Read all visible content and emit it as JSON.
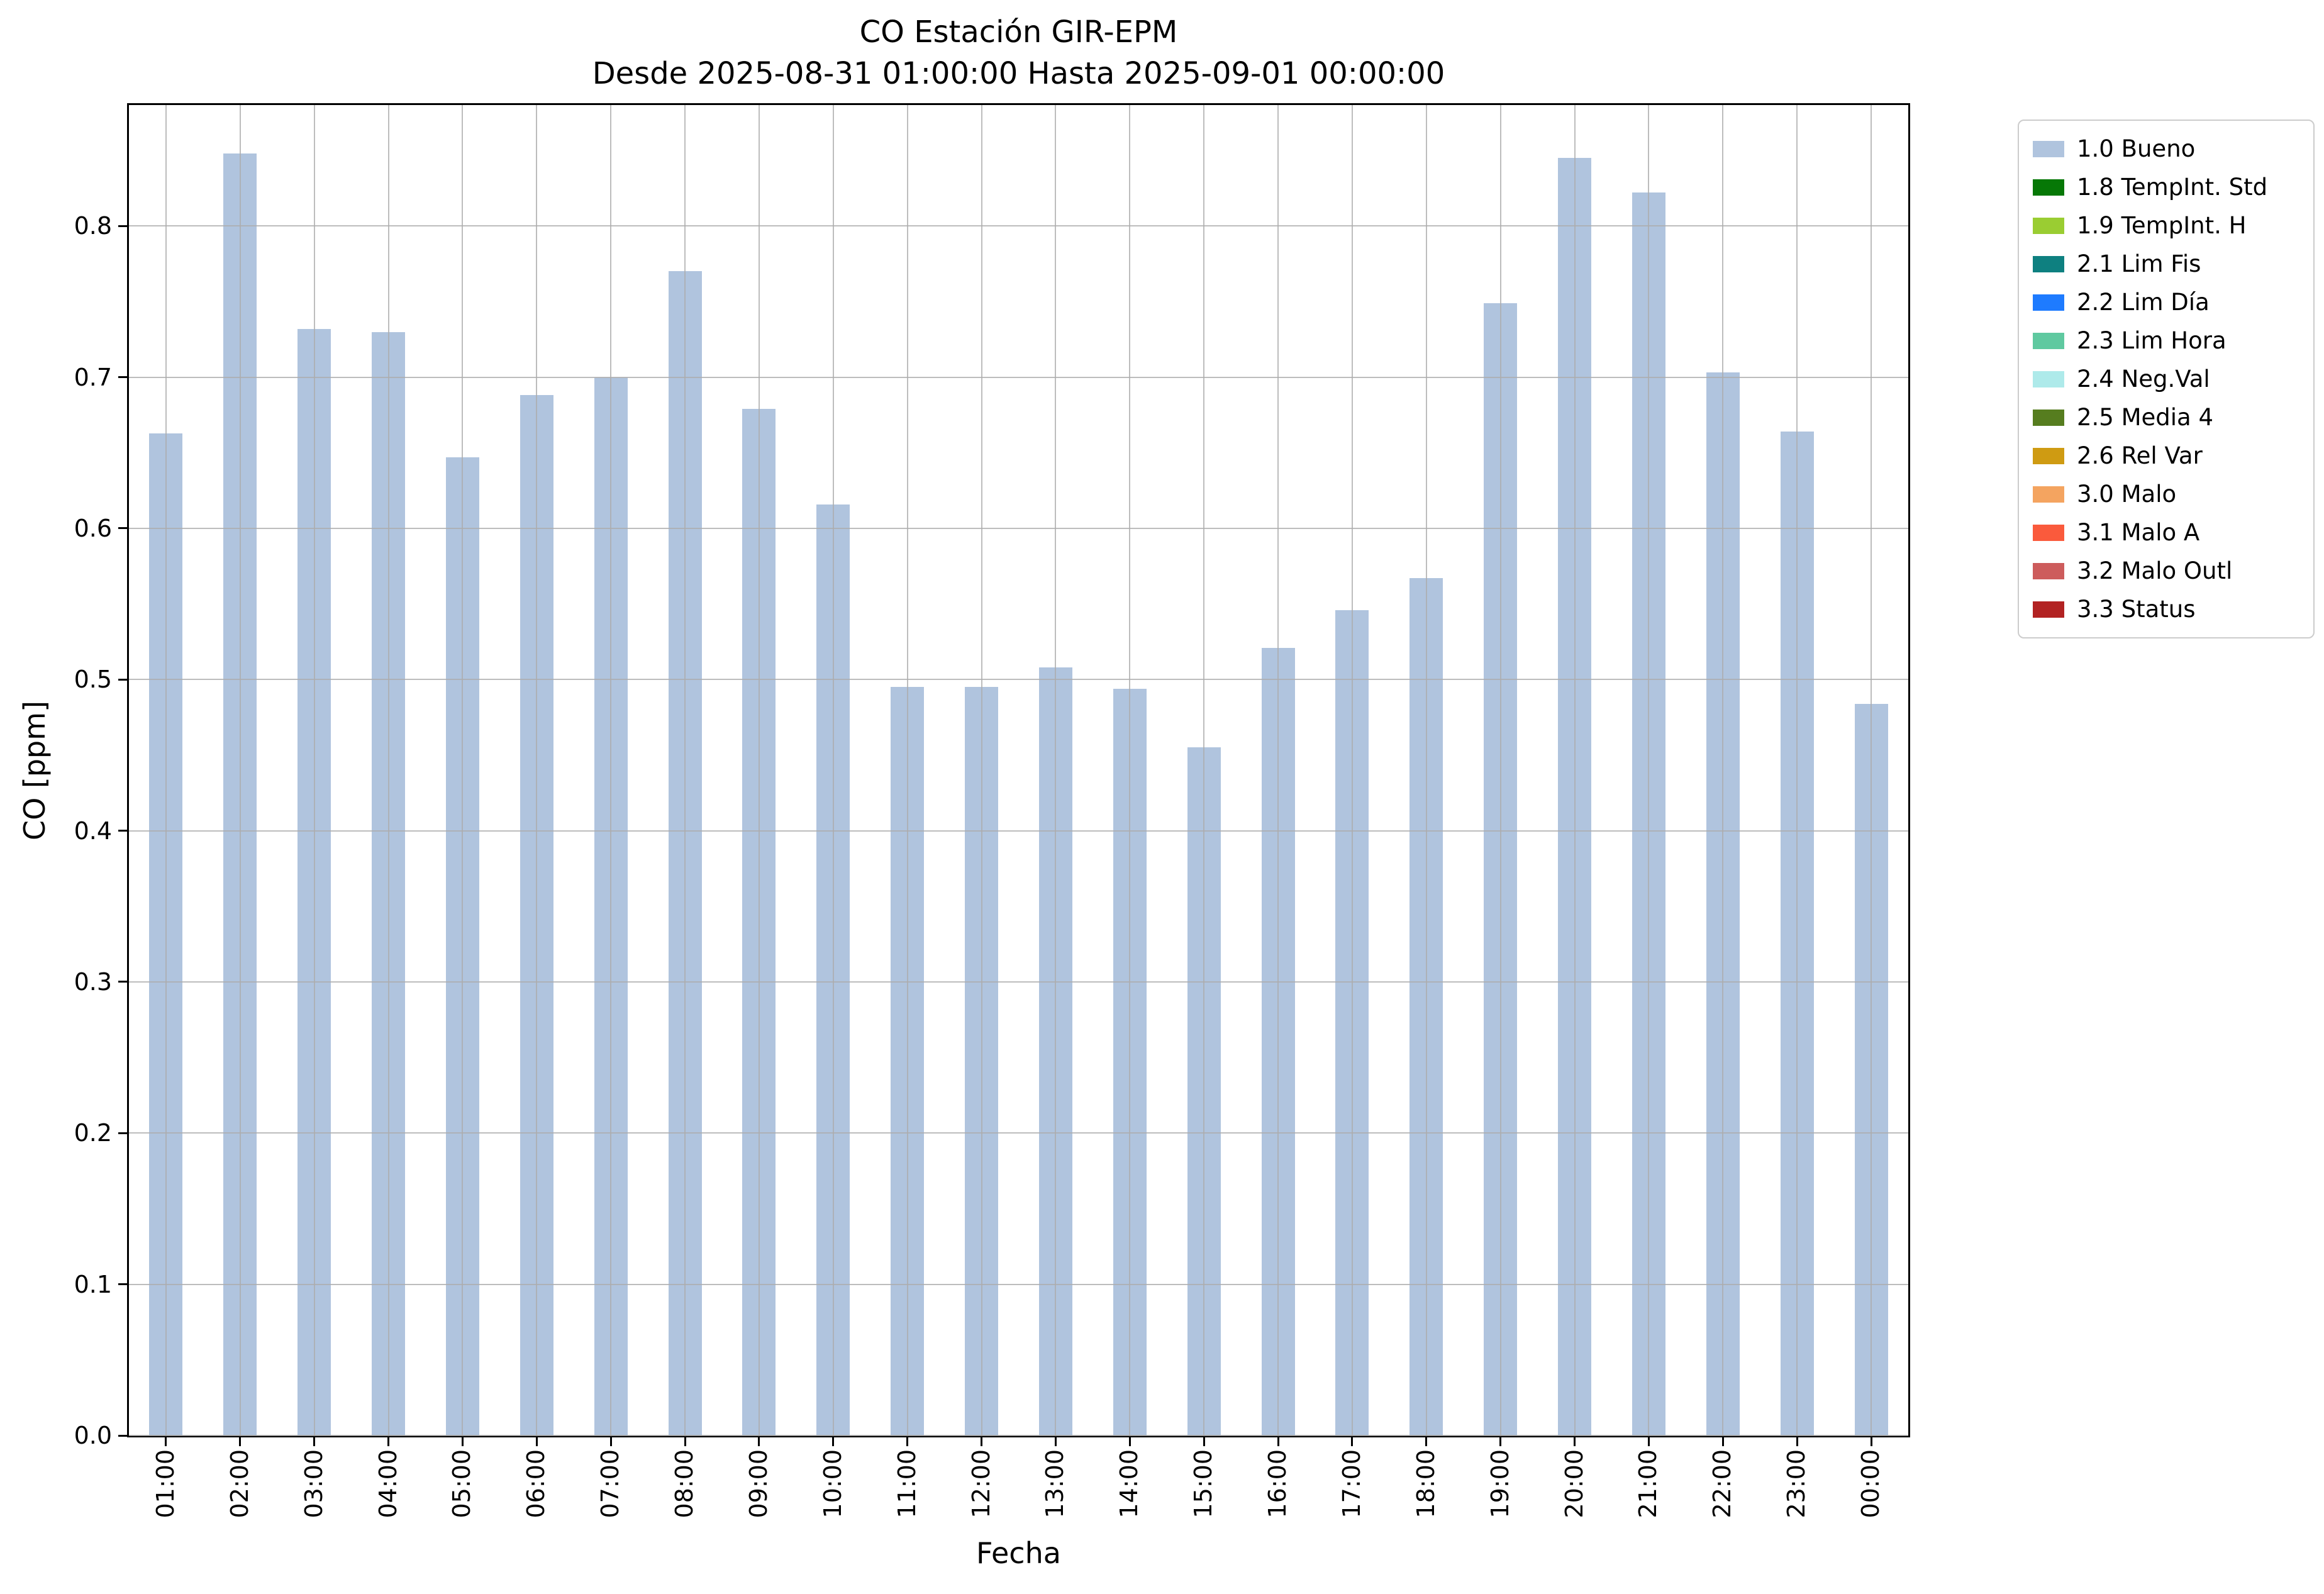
{
  "chart_data": {
    "type": "bar",
    "title": "CO Estación GIR-EPM",
    "subtitle": "Desde 2025-08-31 01:00:00 Hasta 2025-09-01 00:00:00",
    "xlabel": "Fecha",
    "ylabel": "CO [ppm]",
    "ylim": [
      0,
      0.88
    ],
    "yticks": [
      0.0,
      0.1,
      0.2,
      0.3,
      0.4,
      0.5,
      0.6,
      0.7,
      0.8
    ],
    "grid": true,
    "bar_color": "#b0c4de",
    "grid_color": "#adadad",
    "categories": [
      "01:00",
      "02:00",
      "03:00",
      "04:00",
      "05:00",
      "06:00",
      "07:00",
      "08:00",
      "09:00",
      "10:00",
      "11:00",
      "12:00",
      "13:00",
      "14:00",
      "15:00",
      "16:00",
      "17:00",
      "18:00",
      "19:00",
      "20:00",
      "21:00",
      "22:00",
      "23:00",
      "00:00"
    ],
    "values": [
      0.663,
      0.848,
      0.732,
      0.73,
      0.647,
      0.688,
      0.7,
      0.77,
      0.679,
      0.616,
      0.495,
      0.495,
      0.508,
      0.494,
      0.455,
      0.521,
      0.546,
      0.567,
      0.749,
      0.845,
      0.822,
      0.703,
      0.664,
      0.484
    ],
    "legend": {
      "position": "outside-top-right",
      "entries": [
        {
          "label": "1.0 Bueno",
          "color": "#b0c4de"
        },
        {
          "label": "1.8 TempInt. Std",
          "color": "#067806"
        },
        {
          "label": "1.9 TempInt. H",
          "color": "#9acd32"
        },
        {
          "label": "2.1 Lim Fis",
          "color": "#0e8080"
        },
        {
          "label": "2.2 Lim Día",
          "color": "#1e7bff"
        },
        {
          "label": "2.3 Lim Hora",
          "color": "#5fc9a0"
        },
        {
          "label": "2.4 Neg.Val",
          "color": "#aeeaea"
        },
        {
          "label": "2.5 Media 4",
          "color": "#567d1f"
        },
        {
          "label": "2.6 Rel Var",
          "color": "#cf9b12"
        },
        {
          "label": "3.0 Malo",
          "color": "#f4a460"
        },
        {
          "label": "3.1 Malo A",
          "color": "#fa5a3c"
        },
        {
          "label": "3.2 Malo Outl",
          "color": "#cd5c5c"
        },
        {
          "label": "3.3 Status",
          "color": "#b22222"
        }
      ]
    }
  }
}
